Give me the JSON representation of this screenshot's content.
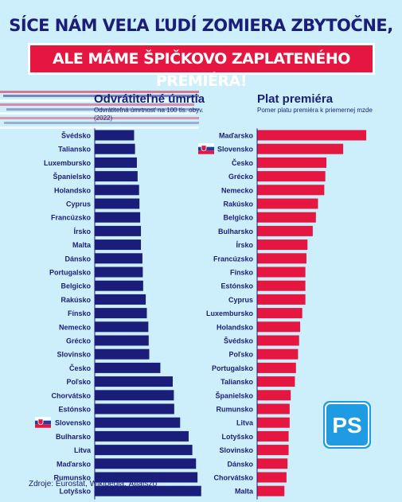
{
  "header": {
    "line1": "SÍCE NÁM VEĽA ĽUDÍ ZOMIERA ZBYTOČNE,",
    "line2": "ALE MÁME ŠPIČKOVO ZAPLATENÉHO PREMIÉRA!"
  },
  "footer": {
    "source": "Zdroje: Eurostat, Wikipedia, Átlátszó"
  },
  "logo": {
    "text": "PS"
  },
  "colors": {
    "background": "#cdeffb",
    "navy": "#1b1d7a",
    "red": "#e5163f",
    "logo_blue": "#1e9be2"
  },
  "chart_data": [
    {
      "type": "bar",
      "orientation": "horizontal",
      "title": "Odvrátiteľné úmrtia",
      "subtitle": "Odvrátiteľná úmrtnosť na 100 tis. obyv. (2022)",
      "bar_color": "#1b1d7a",
      "flag_marker": "Slovensko",
      "categories": [
        "Švédsko",
        "Taliansko",
        "Luxembursko",
        "Španielsko",
        "Holandsko",
        "Cyprus",
        "Francúzsko",
        "Írsko",
        "Malta",
        "Dánsko",
        "Portugalsko",
        "Belgicko",
        "Rakúsko",
        "Fínsko",
        "Nemecko",
        "Grécko",
        "Slovinsko",
        "Česko",
        "Poľsko",
        "Chorvátsko",
        "Estónsko",
        "Slovensko",
        "Bulharsko",
        "Litva",
        "Maďarsko",
        "Rumunsko",
        "Lotyšsko"
      ],
      "values": [
        213,
        218,
        228,
        232,
        240,
        242,
        246,
        250,
        250,
        258,
        260,
        262,
        276,
        282,
        290,
        292,
        295,
        355,
        422,
        428,
        430,
        462,
        508,
        528,
        548,
        556,
        576
      ],
      "xticks": [
        0,
        100,
        200,
        300,
        400,
        500
      ],
      "xlim": [
        0,
        590
      ],
      "grid": false
    },
    {
      "type": "bar",
      "orientation": "horizontal",
      "title": "Plat premiéra",
      "subtitle": "Pomer platu premiéra k priemernej mzde",
      "bar_color": "#e5163f",
      "flag_marker": "Slovensko",
      "categories": [
        "Maďarsko",
        "Slovensko",
        "Česko",
        "Grécko",
        "Nemecko",
        "Rakúsko",
        "Belgicko",
        "Bulharsko",
        "Írsko",
        "Francúzsko",
        "Fínsko",
        "Estónsko",
        "Cyprus",
        "Luxembursko",
        "Holandsko",
        "Švédsko",
        "Poľsko",
        "Portugalsko",
        "Taliansko",
        "Španielsko",
        "Rumunsko",
        "Litva",
        "Lotyšsko",
        "Slovinsko",
        "Dánsko",
        "Chorvátsko",
        "Malta"
      ],
      "values": [
        10.4,
        8.2,
        6.6,
        6.5,
        6.4,
        5.8,
        5.6,
        5.3,
        4.8,
        4.7,
        4.6,
        4.6,
        4.6,
        4.3,
        4.1,
        4.0,
        3.9,
        3.7,
        3.6,
        3.2,
        3.1,
        3.1,
        3.0,
        3.0,
        2.9,
        2.8,
        2.6
      ],
      "xticks": [
        0,
        2,
        4,
        6,
        8,
        10
      ],
      "xlim": [
        0,
        11
      ],
      "grid": false
    }
  ]
}
